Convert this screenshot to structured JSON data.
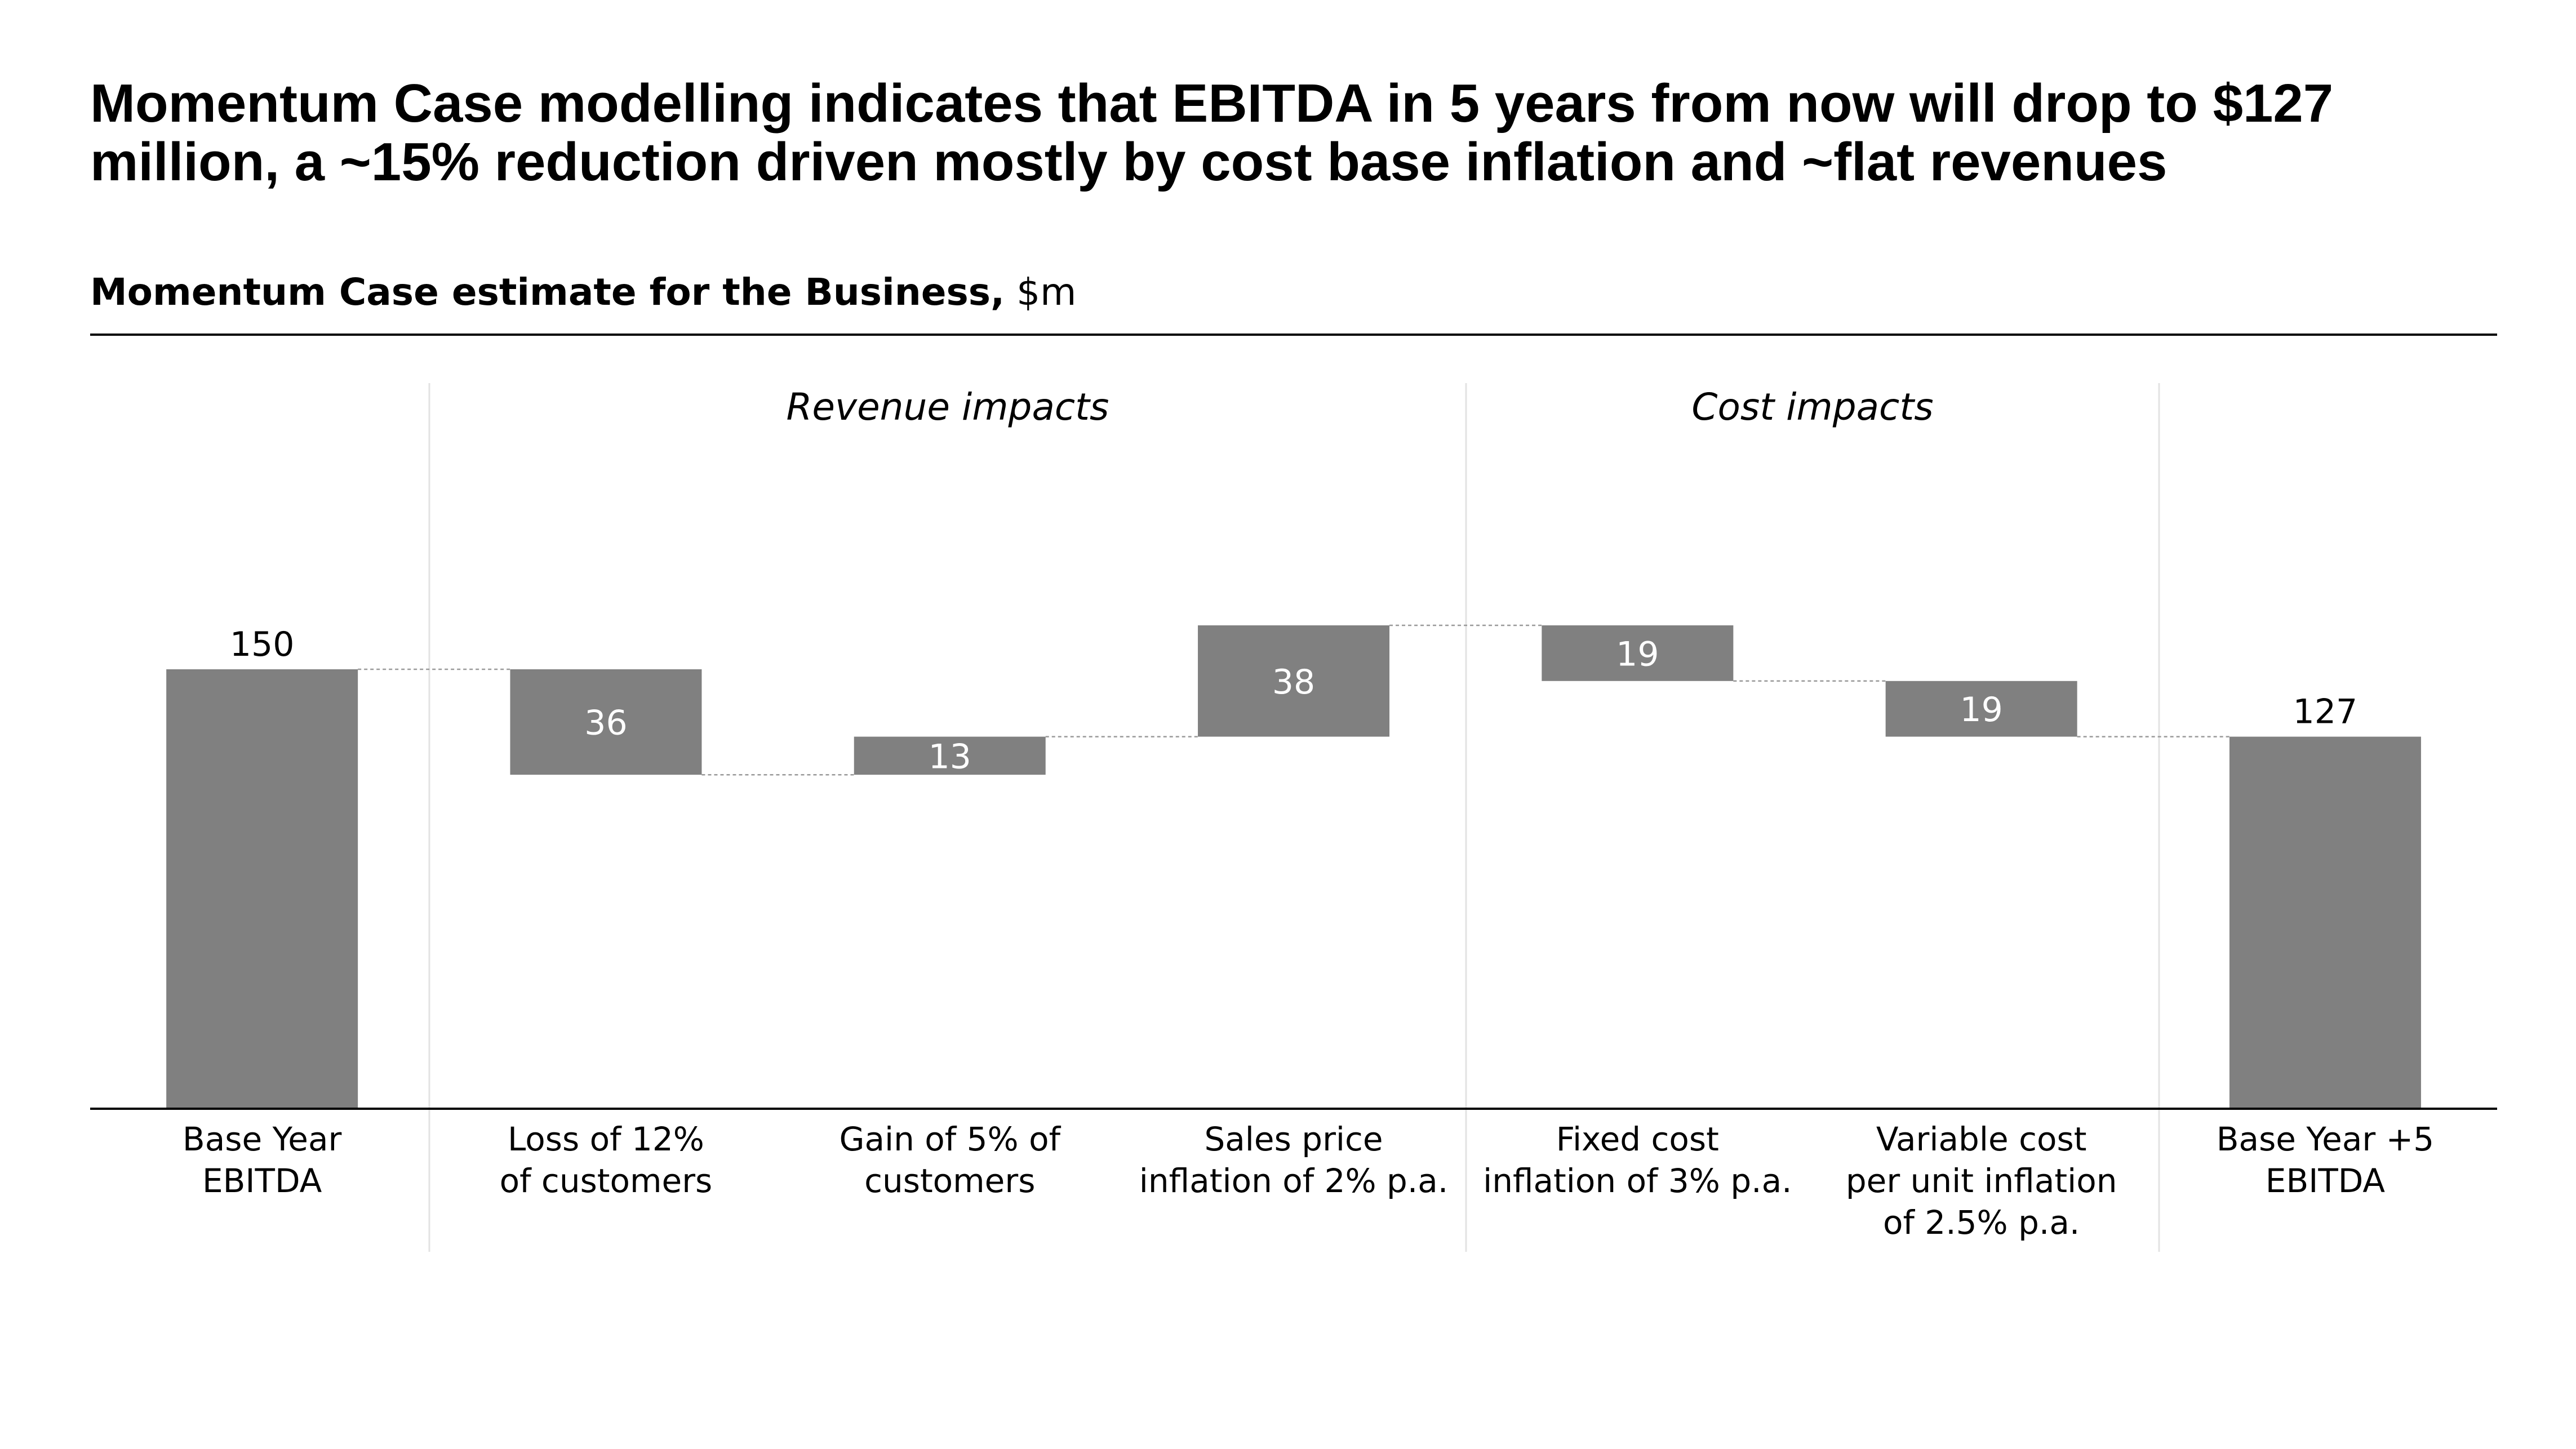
{
  "title": "Momentum Case modelling indicates that EBITDA in 5 years from now will drop to $127 million, a ~15% reduction driven mostly by cost base inflation and ~flat revenues",
  "subtitle": {
    "bold": "Momentum Case estimate for the Business,",
    "unit": " $m"
  },
  "chart_data": {
    "type": "bar",
    "subtype": "waterfall",
    "title": "Momentum Case estimate for the Business, $m",
    "unit": "$m",
    "bar_color": "#808080",
    "groups": [
      {
        "label": "Revenue impacts",
        "categories": [
          1,
          2,
          3
        ]
      },
      {
        "label": "Cost impacts",
        "categories": [
          4,
          5
        ]
      }
    ],
    "categories": [
      [
        "Base Year",
        "EBITDA"
      ],
      [
        "Loss of 12%",
        "of customers"
      ],
      [
        "Gain of 5% of",
        "customers"
      ],
      [
        "Sales price",
        "inflation of 2% p.a."
      ],
      [
        "Fixed cost",
        "inflation of 3% p.a."
      ],
      [
        "Variable cost",
        "per unit inflation",
        "of 2.5% p.a."
      ],
      [
        "Base Year +5",
        "EBITDA"
      ]
    ],
    "steps": [
      {
        "kind": "total",
        "value": 150,
        "label": "150"
      },
      {
        "kind": "delta",
        "value": -36,
        "label": "36"
      },
      {
        "kind": "delta",
        "value": 13,
        "label": "13"
      },
      {
        "kind": "delta",
        "value": 38,
        "label": "38"
      },
      {
        "kind": "delta",
        "value": -19,
        "label": "19"
      },
      {
        "kind": "delta",
        "value": -19,
        "label": "19"
      },
      {
        "kind": "total",
        "value": 127,
        "label": "127"
      }
    ]
  }
}
